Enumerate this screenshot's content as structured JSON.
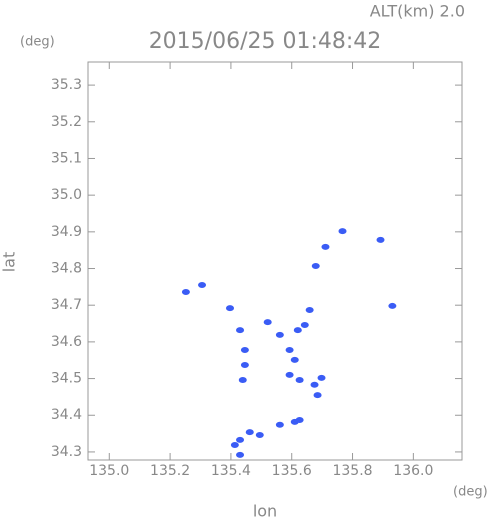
{
  "chart_data": {
    "type": "scatter",
    "title": "2015/06/25 01:48:42",
    "subtitle": "ALT(km) 2.0",
    "y_unit": "(deg)",
    "x_unit": "(deg)",
    "ylabel": "lat",
    "xlabel": "lon",
    "color": "#3a5cf5",
    "xlim": [
      134.93,
      136.16
    ],
    "ylim": [
      34.278,
      35.363
    ],
    "xticks": [
      {
        "value": 135,
        "label": "135.0"
      },
      135.2,
      135.4,
      135.6,
      135.8,
      {
        "value": 136,
        "label": "136.0"
      }
    ],
    "yticks": [
      34.3,
      34.4,
      34.5,
      34.6,
      34.7,
      34.8,
      34.9,
      {
        "value": 35,
        "label": "35.0"
      },
      35.1,
      35.2,
      35.3
    ],
    "x": [
      135.252,
      135.305,
      135.767,
      135.892,
      135.931,
      135.711,
      135.679,
      135.397,
      135.43,
      135.521,
      135.561,
      135.659,
      135.643,
      135.62,
      135.593,
      135.61,
      135.626,
      135.593,
      135.675,
      135.698,
      135.685,
      135.446,
      135.439,
      135.43,
      135.413,
      135.43,
      135.495,
      135.561,
      135.61,
      135.626,
      135.462,
      135.446
    ],
    "values": [
      34.736,
      34.755,
      34.902,
      34.878,
      34.698,
      34.859,
      34.807,
      34.692,
      34.632,
      34.654,
      34.619,
      34.687,
      34.646,
      34.632,
      34.578,
      34.551,
      34.496,
      34.51,
      34.483,
      34.502,
      34.455,
      34.537,
      34.496,
      34.333,
      34.319,
      34.292,
      34.346,
      34.374,
      34.382,
      34.387,
      34.354,
      34.578
    ]
  }
}
